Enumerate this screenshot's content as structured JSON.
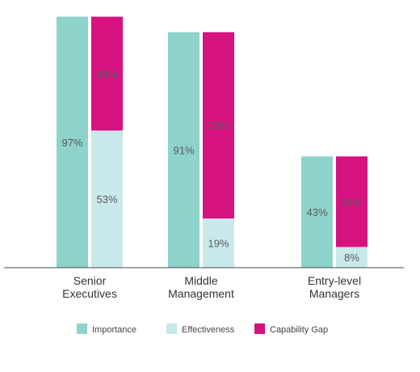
{
  "chart_data": {
    "type": "bar",
    "layout": "grouped-stacked",
    "categories": [
      [
        "Senior",
        "Executives"
      ],
      [
        "Middle",
        "Management"
      ],
      [
        "Entry-level",
        "Managers"
      ]
    ],
    "series": [
      {
        "name": "Importance",
        "values": [
          97,
          91,
          43
        ],
        "color": "#8ed3cb",
        "stack": "importance"
      },
      {
        "name": "Effectiveness",
        "values": [
          53,
          19,
          8
        ],
        "color": "#c9e8ea",
        "stack": "effectiveness-gap"
      },
      {
        "name": "Capability Gap",
        "values": [
          44,
          72,
          35
        ],
        "color": "#d5127f",
        "stack": "effectiveness-gap"
      }
    ],
    "ylim": [
      0,
      100
    ],
    "grid": false,
    "legend_position": "bottom",
    "data_label_suffix": "%"
  }
}
